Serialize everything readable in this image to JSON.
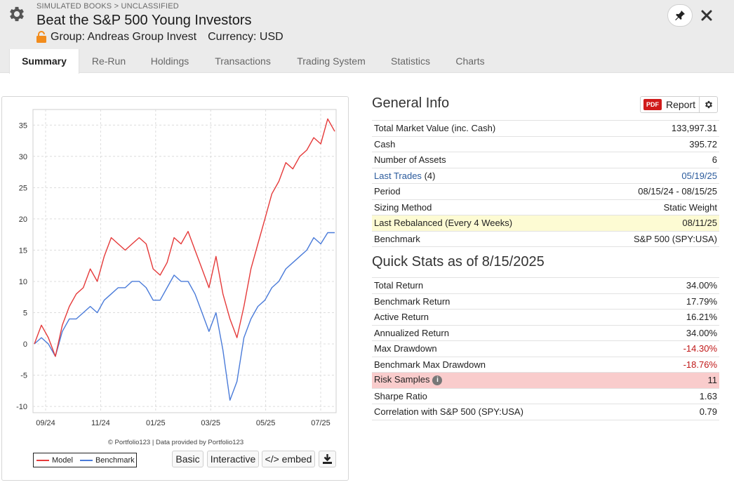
{
  "header": {
    "breadcrumb": "SIMULATED BOOKS > UNCLASSIFIED",
    "title": "Beat the S&P 500 Young Investors",
    "group": "Group: Andreas Group Invest",
    "currency": "Currency: USD"
  },
  "tabs": [
    "Summary",
    "Re-Run",
    "Holdings",
    "Transactions",
    "Trading System",
    "Statistics",
    "Charts"
  ],
  "active_tab": "Summary",
  "chart": {
    "credit": "© Portfolio123 | Data provided by Portfolio123",
    "legend_model": "Model",
    "legend_benchmark": "Benchmark",
    "btn_basic": "Basic",
    "btn_interactive": "Interactive",
    "btn_embed": "</> embed"
  },
  "chart_data": {
    "type": "line",
    "ylim": [
      -11,
      37.5
    ],
    "yticks": [
      -10,
      -5,
      0,
      5,
      10,
      15,
      20,
      25,
      30,
      35
    ],
    "xticks": [
      "09/24",
      "11/24",
      "01/25",
      "03/25",
      "05/25",
      "07/25"
    ],
    "x_range": [
      "08/15/24",
      "08/15/25"
    ],
    "series": [
      {
        "name": "Model",
        "color": "#e53a3a",
        "values": [
          0,
          3,
          1,
          -2,
          3,
          6,
          8,
          9,
          12,
          10,
          14,
          17,
          16,
          15,
          16,
          17,
          16,
          12,
          11,
          13,
          17,
          16,
          18,
          15,
          12,
          9,
          14,
          8,
          4,
          1,
          6,
          12,
          16,
          20,
          24,
          26,
          29,
          28,
          30,
          31,
          33,
          32,
          36,
          34
        ]
      },
      {
        "name": "Benchmark",
        "color": "#4a7bd9",
        "values": [
          0,
          1,
          0,
          -2,
          2,
          4,
          4,
          5,
          6,
          5,
          7,
          8,
          9,
          9,
          10,
          10,
          9,
          7,
          7,
          9,
          11,
          10,
          10,
          8,
          5,
          2,
          5,
          -1,
          -9,
          -6,
          1,
          4,
          6,
          7,
          9,
          10,
          12,
          13,
          14,
          15,
          17,
          16,
          17.8,
          17.8
        ]
      }
    ]
  },
  "general_info": {
    "title": "General Info",
    "report_label": "Report",
    "pdf_badge": "PDF",
    "rows": [
      {
        "label": "Total Market Value (inc. Cash)",
        "value": "133,997.31"
      },
      {
        "label": "Cash",
        "value": "395.72"
      },
      {
        "label": "Number of Assets",
        "value": "6"
      },
      {
        "label": "Last Trades",
        "extra": "(4)",
        "value": "05/19/25"
      },
      {
        "label": "Period",
        "value": "08/15/24 - 08/15/25"
      },
      {
        "label": "Sizing Method",
        "value": "Static Weight"
      },
      {
        "label": "Last Rebalanced (Every 4 Weeks)",
        "value": "08/11/25"
      },
      {
        "label": "Benchmark",
        "value": "S&P 500 (SPY:USA)"
      }
    ]
  },
  "quick_stats": {
    "title": "Quick Stats as of 8/15/2025",
    "rows": [
      {
        "label": "Total Return",
        "value": "34.00%"
      },
      {
        "label": "Benchmark Return",
        "value": "17.79%"
      },
      {
        "label": "Active Return",
        "value": "16.21%"
      },
      {
        "label": "Annualized Return",
        "value": "34.00%"
      },
      {
        "label": "Max Drawdown",
        "value": "-14.30%"
      },
      {
        "label": "Benchmark Max Drawdown",
        "value": "-18.76%"
      },
      {
        "label": "Risk Samples",
        "value": "11"
      },
      {
        "label": "Sharpe Ratio",
        "value": "1.63"
      },
      {
        "label": "Correlation with S&P 500 (SPY:USA)",
        "value": "0.79"
      }
    ]
  },
  "colors": {
    "model": "#e53a3a",
    "benchmark": "#4a7bd9",
    "negative": "#c01818",
    "link": "#2a5a9c",
    "highlight_yellow": "#fdfbd3",
    "highlight_red": "#f9cccc",
    "pdf_badge": "#d01a1a"
  }
}
